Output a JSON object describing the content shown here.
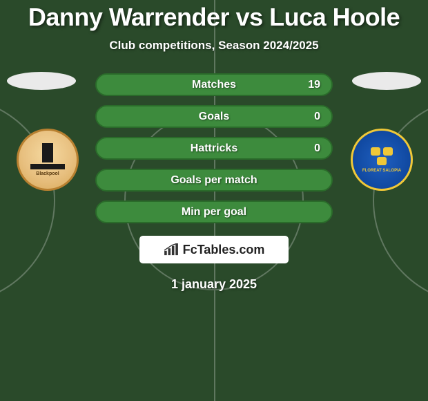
{
  "title": "Danny Warrender vs Luca Hoole",
  "subtitle": "Club competitions, Season 2024/2025",
  "date": "1 january 2025",
  "brand": "FcTables.com",
  "background_color": "#2a4a2a",
  "row_fill_color": "#3d8b3d",
  "row_border_color": "#2a6b2a",
  "text_color": "#ffffff",
  "label_fontsize": 16,
  "title_fontsize": 36,
  "stats": [
    {
      "label": "Matches",
      "left_val": null,
      "right_val": "19",
      "left_fill": 0,
      "right_fill": 1.0
    },
    {
      "label": "Goals",
      "left_val": null,
      "right_val": "0",
      "left_fill": 0,
      "right_fill": 1.0
    },
    {
      "label": "Hattricks",
      "left_val": null,
      "right_val": "0",
      "left_fill": 0,
      "right_fill": 1.0
    },
    {
      "label": "Goals per match",
      "left_val": null,
      "right_val": null,
      "left_fill": 0,
      "right_fill": 1.0
    },
    {
      "label": "Min per goal",
      "left_val": null,
      "right_val": null,
      "left_fill": 0,
      "right_fill": 1.0
    }
  ],
  "clubs": {
    "left": {
      "name": "Blackpool",
      "crest_primary": "#e8c080",
      "crest_accent": "#1a1a1a"
    },
    "right": {
      "name": "Shrewsbury Town",
      "crest_primary": "#1048a0",
      "crest_accent": "#f0c838",
      "motto": "FLOREAT SALOPIA"
    }
  }
}
